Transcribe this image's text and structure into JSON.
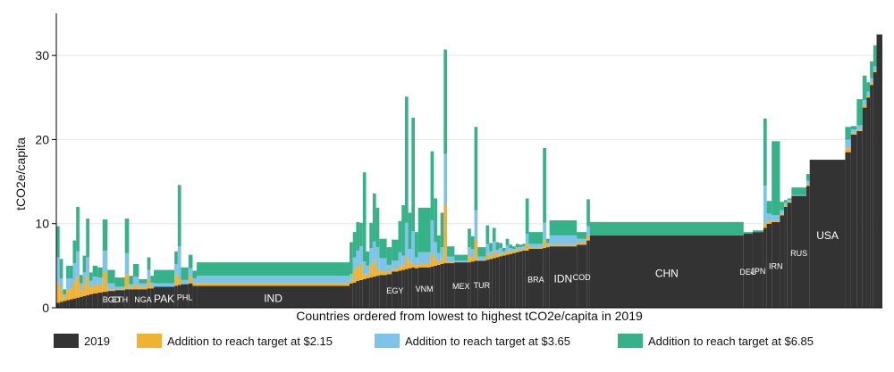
{
  "chart_data": {
    "type": "bar",
    "ylabel": "tCO2e/capita",
    "xlabel": "Countries ordered from lowest to highest tCO2e/capita in 2019",
    "ylim": [
      0,
      35
    ],
    "yticks": [
      0,
      10,
      20,
      30
    ],
    "grid": true,
    "legend_position": "bottom",
    "colors": {
      "y2019": "#333333",
      "add215": "#f0b232",
      "add365": "#7ec3ea",
      "add685": "#35b288"
    },
    "series": [
      {
        "key": "y2019",
        "name": "2019"
      },
      {
        "key": "add215",
        "name": "Addition to reach target at $2.15"
      },
      {
        "key": "add365",
        "name": "Addition to reach target at $3.65"
      },
      {
        "key": "add685",
        "name": "Addition to reach target at $6.85"
      }
    ],
    "population_share_axis": [
      0,
      100
    ],
    "countries": [
      {
        "x0": 0.0,
        "x1": 0.4,
        "y2019": 0.6,
        "add215": 2.4,
        "add365": 3.0,
        "add685": 3.7
      },
      {
        "x0": 0.4,
        "x1": 0.8,
        "y2019": 0.7,
        "add215": 1.5,
        "add365": 1.3,
        "add685": 2.3
      },
      {
        "x0": 0.8,
        "x1": 1.2,
        "y2019": 0.8,
        "add215": 0.4,
        "add365": 0.4,
        "add685": 0.6
      },
      {
        "x0": 1.2,
        "x1": 1.6,
        "y2019": 0.9,
        "add215": 1.2,
        "add365": 1.4,
        "add685": 1.5
      },
      {
        "x0": 1.6,
        "x1": 2.0,
        "y2019": 1.0,
        "add215": 1.3,
        "add365": 1.2,
        "add685": 1.5
      },
      {
        "x0": 2.0,
        "x1": 2.4,
        "y2019": 1.1,
        "add215": 2.0,
        "add365": 2.2,
        "add685": 2.7
      },
      {
        "x0": 2.4,
        "x1": 2.8,
        "y2019": 1.2,
        "add215": 2.5,
        "add365": 3.0,
        "add685": 5.3
      },
      {
        "x0": 2.8,
        "x1": 3.2,
        "y2019": 1.3,
        "add215": 0.8,
        "add365": 0.8,
        "add685": 1.0
      },
      {
        "x0": 3.2,
        "x1": 3.6,
        "y2019": 1.4,
        "add215": 1.4,
        "add365": 1.4,
        "add685": 2.0
      },
      {
        "x0": 3.6,
        "x1": 4.0,
        "y2019": 1.5,
        "add215": 2.2,
        "add365": 2.3,
        "add685": 4.6
      },
      {
        "x0": 4.0,
        "x1": 4.4,
        "y2019": 1.6,
        "add215": 0.8,
        "add365": 0.8,
        "add685": 1.0
      },
      {
        "x0": 4.4,
        "x1": 5.0,
        "y2019": 1.7,
        "add215": 1.0,
        "add365": 1.0,
        "add685": 1.3
      },
      {
        "x0": 5.0,
        "x1": 5.6,
        "y2019": 1.8,
        "add215": 0.9,
        "add365": 0.9,
        "add685": 1.2
      },
      {
        "x0": 5.6,
        "x1": 6.2,
        "y2019": 1.9,
        "add215": 2.4,
        "add365": 2.5,
        "add685": 3.7
      },
      {
        "x0": 6.2,
        "x1": 7.1,
        "y2019": 2.0,
        "add215": 0.2,
        "add365": 0.7,
        "add685": 1.6,
        "label": "BGD"
      },
      {
        "x0": 7.1,
        "x1": 8.3,
        "y2019": 2.1,
        "add215": 0.1,
        "add365": 0.3,
        "add685": 1.1,
        "label": "ETH"
      },
      {
        "x0": 8.3,
        "x1": 8.8,
        "y2019": 2.2,
        "add215": 1.8,
        "add365": 2.5,
        "add685": 4.1
      },
      {
        "x0": 8.8,
        "x1": 9.3,
        "y2019": 2.2,
        "add215": 0.2,
        "add365": 0.4,
        "add685": 1.0
      },
      {
        "x0": 9.3,
        "x1": 10.0,
        "y2019": 2.2,
        "add215": 0.5,
        "add365": 1.0,
        "add685": 1.5
      },
      {
        "x0": 10.0,
        "x1": 11.0,
        "y2019": 2.2,
        "add215": 0.3,
        "add365": 0.4,
        "add685": 0.5,
        "label": "NGA"
      },
      {
        "x0": 11.0,
        "x1": 11.4,
        "y2019": 2.3,
        "add215": 1.0,
        "add365": 1.2,
        "add685": 1.5
      },
      {
        "x0": 11.4,
        "x1": 11.8,
        "y2019": 2.3,
        "add215": 0.3,
        "add365": 0.4,
        "add685": 0.8
      },
      {
        "x0": 11.8,
        "x1": 14.3,
        "y2019": 2.5,
        "add215": 0.0,
        "add365": 0.4,
        "add685": 1.6,
        "label": "PAK"
      },
      {
        "x0": 14.3,
        "x1": 14.7,
        "y2019": 2.6,
        "add215": 1.3,
        "add365": 1.3,
        "add685": 1.5
      },
      {
        "x0": 14.7,
        "x1": 15.1,
        "y2019": 2.7,
        "add215": 0.8,
        "add365": 3.8,
        "add685": 7.3
      },
      {
        "x0": 15.1,
        "x1": 16.0,
        "y2019": 2.8,
        "add215": 0.0,
        "add365": 0.5,
        "add685": 1.5,
        "label": "PHL"
      },
      {
        "x0": 16.0,
        "x1": 16.5,
        "y2019": 2.9,
        "add215": 0.8,
        "add365": 1.0,
        "add685": 1.6
      },
      {
        "x0": 16.5,
        "x1": 17.0,
        "y2019": 2.6,
        "add215": 0.3,
        "add365": 0.6,
        "add685": 0.9
      },
      {
        "x0": 17.0,
        "x1": 35.5,
        "y2019": 2.6,
        "add215": 0.3,
        "add365": 0.9,
        "add685": 1.6,
        "label": "IND"
      },
      {
        "x0": 35.5,
        "x1": 35.9,
        "y2019": 2.9,
        "add215": 0.5,
        "add365": 0.6,
        "add685": 3.8
      },
      {
        "x0": 35.9,
        "x1": 36.3,
        "y2019": 3.0,
        "add215": 1.5,
        "add365": 1.5,
        "add685": 3.0
      },
      {
        "x0": 36.3,
        "x1": 36.7,
        "y2019": 3.2,
        "add215": 1.6,
        "add365": 2.0,
        "add685": 3.4
      },
      {
        "x0": 36.7,
        "x1": 37.1,
        "y2019": 3.3,
        "add215": 2.0,
        "add365": 2.0,
        "add685": 2.8
      },
      {
        "x0": 37.1,
        "x1": 37.5,
        "y2019": 3.4,
        "add215": 0.6,
        "add365": 1.5,
        "add685": 10.6
      },
      {
        "x0": 37.5,
        "x1": 37.9,
        "y2019": 3.5,
        "add215": 0.5,
        "add365": 1.0,
        "add685": 1.7
      },
      {
        "x0": 37.9,
        "x1": 38.3,
        "y2019": 3.6,
        "add215": 1.5,
        "add365": 2.0,
        "add685": 3.0
      },
      {
        "x0": 38.3,
        "x1": 38.7,
        "y2019": 3.7,
        "add215": 2.0,
        "add365": 2.2,
        "add685": 5.7
      },
      {
        "x0": 38.7,
        "x1": 39.1,
        "y2019": 3.8,
        "add215": 0.8,
        "add365": 2.6,
        "add685": 4.7
      },
      {
        "x0": 39.1,
        "x1": 40.0,
        "y2019": 3.9,
        "add215": 0.5,
        "add365": 1.5,
        "add685": 2.3
      },
      {
        "x0": 40.0,
        "x1": 40.6,
        "y2019": 4.0,
        "add215": 0.3,
        "add365": 0.8,
        "add685": 2.1
      },
      {
        "x0": 40.6,
        "x1": 41.4,
        "y2019": 4.3,
        "add215": 0.3,
        "add365": 1.0,
        "add685": 2.5,
        "label": "EGY"
      },
      {
        "x0": 41.4,
        "x1": 41.8,
        "y2019": 4.4,
        "add215": 0.7,
        "add365": 1.5,
        "add685": 3.7
      },
      {
        "x0": 41.8,
        "x1": 42.2,
        "y2019": 4.5,
        "add215": 0.5,
        "add365": 1.2,
        "add685": 6.0
      },
      {
        "x0": 42.2,
        "x1": 42.6,
        "y2019": 4.6,
        "add215": 1.5,
        "add365": 4.0,
        "add685": 15.0
      },
      {
        "x0": 42.6,
        "x1": 43.0,
        "y2019": 4.7,
        "add215": 0.8,
        "add365": 1.5,
        "add685": 4.3
      },
      {
        "x0": 43.0,
        "x1": 43.4,
        "y2019": 4.8,
        "add215": 0.5,
        "add365": 3.8,
        "add685": 13.5
      },
      {
        "x0": 43.4,
        "x1": 43.8,
        "y2019": 4.7,
        "add215": 0.3,
        "add365": 1.0,
        "add685": 3.0
      },
      {
        "x0": 43.8,
        "x1": 45.3,
        "y2019": 4.8,
        "add215": 0.4,
        "add365": 1.4,
        "add685": 5.3,
        "label": "VNM"
      },
      {
        "x0": 45.3,
        "x1": 45.7,
        "y2019": 4.9,
        "add215": 1.5,
        "add365": 4.0,
        "add685": 8.2
      },
      {
        "x0": 45.7,
        "x1": 46.1,
        "y2019": 5.0,
        "add215": 0.8,
        "add365": 2.0,
        "add685": 5.2
      },
      {
        "x0": 46.1,
        "x1": 46.5,
        "y2019": 5.1,
        "add215": 0.4,
        "add365": 1.0,
        "add685": 2.1
      },
      {
        "x0": 46.5,
        "x1": 46.9,
        "y2019": 5.2,
        "add215": 0.6,
        "add365": 1.4,
        "add685": 4.1
      },
      {
        "x0": 46.9,
        "x1": 47.3,
        "y2019": 5.3,
        "add215": 7.0,
        "add365": 6.0,
        "add685": 12.4
      },
      {
        "x0": 47.3,
        "x1": 48.2,
        "y2019": 5.3,
        "add215": 0.2,
        "add365": 0.6,
        "add685": 1.2
      },
      {
        "x0": 48.2,
        "x1": 49.8,
        "y2019": 5.4,
        "add215": 0.0,
        "add365": 0.2,
        "add685": 0.7,
        "label": "MEX"
      },
      {
        "x0": 49.8,
        "x1": 50.2,
        "y2019": 5.4,
        "add215": 0.8,
        "add365": 1.0,
        "add685": 2.2
      },
      {
        "x0": 50.2,
        "x1": 50.6,
        "y2019": 5.5,
        "add215": 0.5,
        "add365": 1.0,
        "add685": 1.5
      },
      {
        "x0": 50.6,
        "x1": 51.0,
        "y2019": 5.6,
        "add215": 2.5,
        "add365": 3.5,
        "add685": 9.9
      },
      {
        "x0": 51.0,
        "x1": 52.0,
        "y2019": 5.6,
        "add215": 0.1,
        "add365": 0.4,
        "add685": 1.1,
        "label": "TUR"
      },
      {
        "x0": 52.0,
        "x1": 52.4,
        "y2019": 5.7,
        "add215": 0.7,
        "add365": 1.2,
        "add685": 2.2
      },
      {
        "x0": 52.4,
        "x1": 52.8,
        "y2019": 5.8,
        "add215": 0.3,
        "add365": 0.6,
        "add685": 1.0
      },
      {
        "x0": 52.8,
        "x1": 53.2,
        "y2019": 5.9,
        "add215": 0.8,
        "add365": 1.2,
        "add685": 1.6
      },
      {
        "x0": 53.2,
        "x1": 53.6,
        "y2019": 6.0,
        "add215": 0.3,
        "add365": 0.6,
        "add685": 0.9
      },
      {
        "x0": 53.6,
        "x1": 54.0,
        "y2019": 6.1,
        "add215": 0.4,
        "add365": 0.6,
        "add685": 0.6
      },
      {
        "x0": 54.0,
        "x1": 54.4,
        "y2019": 6.2,
        "add215": 0.2,
        "add365": 0.3,
        "add685": 0.4
      },
      {
        "x0": 54.4,
        "x1": 54.8,
        "y2019": 6.3,
        "add215": 0.5,
        "add365": 0.6,
        "add685": 0.8
      },
      {
        "x0": 54.8,
        "x1": 55.2,
        "y2019": 6.4,
        "add215": 0.3,
        "add365": 0.4,
        "add685": 0.4
      },
      {
        "x0": 55.2,
        "x1": 55.6,
        "y2019": 6.5,
        "add215": 0.2,
        "add365": 0.3,
        "add685": 0.3
      },
      {
        "x0": 55.6,
        "x1": 56.0,
        "y2019": 6.6,
        "add215": 0.3,
        "add365": 0.3,
        "add685": 0.4
      },
      {
        "x0": 56.0,
        "x1": 56.4,
        "y2019": 6.7,
        "add215": 0.2,
        "add365": 0.3,
        "add685": 0.3
      },
      {
        "x0": 56.4,
        "x1": 56.8,
        "y2019": 6.8,
        "add215": 0.2,
        "add365": 0.3,
        "add685": 0.3
      },
      {
        "x0": 56.8,
        "x1": 57.2,
        "y2019": 6.8,
        "add215": 0.8,
        "add365": 1.2,
        "add685": 4.2
      },
      {
        "x0": 57.2,
        "x1": 58.9,
        "y2019": 7.0,
        "add215": 0.2,
        "add365": 0.4,
        "add685": 1.4,
        "label": "BRA"
      },
      {
        "x0": 58.9,
        "x1": 59.3,
        "y2019": 7.1,
        "add215": 1.0,
        "add365": 2.0,
        "add685": 8.9
      },
      {
        "x0": 59.3,
        "x1": 59.7,
        "y2019": 7.2,
        "add215": 0.2,
        "add365": 0.3,
        "add685": 0.5
      },
      {
        "x0": 59.7,
        "x1": 63.0,
        "y2019": 7.3,
        "add215": 0.2,
        "add365": 1.1,
        "add685": 1.8,
        "label": "IDN"
      },
      {
        "x0": 63.0,
        "x1": 64.2,
        "y2019": 7.5,
        "add215": 0.3,
        "add365": 0.4,
        "add685": 0.8,
        "label": "COD"
      },
      {
        "x0": 64.2,
        "x1": 64.6,
        "y2019": 8.0,
        "add215": 0.7,
        "add365": 1.0,
        "add685": 3.2
      },
      {
        "x0": 64.6,
        "x1": 83.2,
        "y2019": 8.6,
        "add215": 0.0,
        "add365": 0.0,
        "add685": 1.6,
        "label": "CHN"
      },
      {
        "x0": 83.2,
        "x1": 84.3,
        "y2019": 8.8,
        "add215": 0.0,
        "add365": 0.0,
        "add685": 0.2,
        "label": "DEU"
      },
      {
        "x0": 84.3,
        "x1": 85.6,
        "y2019": 9.0,
        "add215": 0.0,
        "add365": 0.0,
        "add685": 0.2,
        "label": "JPN"
      },
      {
        "x0": 85.6,
        "x1": 86.0,
        "y2019": 9.5,
        "add215": 0.5,
        "add365": 4.5,
        "add685": 8.0
      },
      {
        "x0": 86.0,
        "x1": 86.6,
        "y2019": 10.0,
        "add215": 0.4,
        "add365": 0.8,
        "add685": 1.5
      },
      {
        "x0": 86.6,
        "x1": 87.6,
        "y2019": 10.2,
        "add215": 0.2,
        "add365": 0.6,
        "add685": 8.8,
        "label": "IRN"
      },
      {
        "x0": 87.6,
        "x1": 88.1,
        "y2019": 11.0,
        "add215": 0.2,
        "add365": 0.4,
        "add685": 1.0
      },
      {
        "x0": 88.1,
        "x1": 88.5,
        "y2019": 12.0,
        "add215": 0.2,
        "add365": 0.3,
        "add685": 0.3
      },
      {
        "x0": 88.5,
        "x1": 89.0,
        "y2019": 12.5,
        "add215": 0.1,
        "add365": 0.2,
        "add685": 0.2
      },
      {
        "x0": 89.0,
        "x1": 90.8,
        "y2019": 13.3,
        "add215": 0.0,
        "add365": 0.1,
        "add685": 0.9,
        "label": "RUS"
      },
      {
        "x0": 90.8,
        "x1": 91.2,
        "y2019": 14.5,
        "add215": 0.2,
        "add365": 0.4,
        "add685": 0.8
      },
      {
        "x0": 91.2,
        "x1": 95.5,
        "y2019": 17.6,
        "add215": 0.0,
        "add365": 0.0,
        "add685": 0.0,
        "label": "USA"
      },
      {
        "x0": 95.5,
        "x1": 96.2,
        "y2019": 18.5,
        "add215": 0.5,
        "add365": 1.0,
        "add685": 1.5
      },
      {
        "x0": 96.2,
        "x1": 96.9,
        "y2019": 20.6,
        "add215": 0.2,
        "add365": 0.4,
        "add685": 0.4
      },
      {
        "x0": 96.9,
        "x1": 97.6,
        "y2019": 21.0,
        "add215": 0.2,
        "add365": 0.5,
        "add685": 3.1
      },
      {
        "x0": 97.6,
        "x1": 98.1,
        "y2019": 23.8,
        "add215": 0.3,
        "add365": 0.6,
        "add685": 2.9
      },
      {
        "x0": 98.1,
        "x1": 98.5,
        "y2019": 25.0,
        "add215": 0.2,
        "add365": 0.5,
        "add685": 1.1
      },
      {
        "x0": 98.5,
        "x1": 98.9,
        "y2019": 26.5,
        "add215": 0.3,
        "add365": 0.5,
        "add685": 2.0
      },
      {
        "x0": 98.9,
        "x1": 99.3,
        "y2019": 28.0,
        "add215": 0.2,
        "add365": 0.5,
        "add685": 2.5
      },
      {
        "x0": 99.3,
        "x1": 100.0,
        "y2019": 32.5,
        "add215": 0.0,
        "add365": 0.0,
        "add685": 0.0
      }
    ]
  }
}
